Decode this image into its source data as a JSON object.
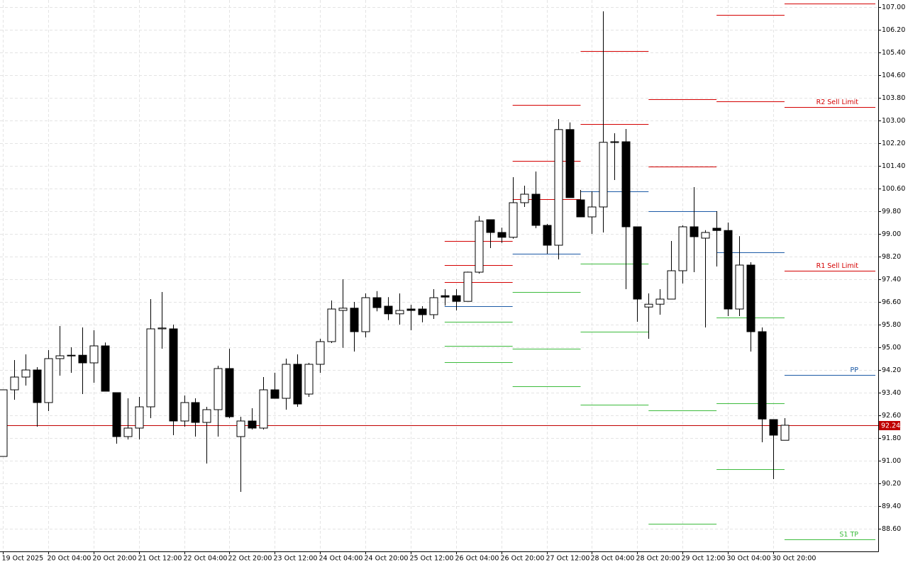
{
  "chart_data": {
    "type": "candlestick",
    "categories": [
      "19 Oct 2025",
      null,
      null,
      null,
      "20 Oct 04:00",
      null,
      null,
      null,
      "20 Oct 20:00",
      null,
      null,
      null,
      "21 Oct 12:00",
      null,
      null,
      null,
      "22 Oct 04:00",
      null,
      null,
      null,
      "22 Oct 20:00",
      null,
      null,
      null,
      "23 Oct 12:00",
      null,
      null,
      null,
      "24 Oct 04:00",
      null,
      null,
      null,
      "24 Oct 20:00",
      null,
      null,
      null,
      "25 Oct 12:00",
      null,
      null,
      null,
      "26 Oct 04:00",
      null,
      null,
      null,
      "26 Oct 20:00",
      null,
      null,
      null,
      "27 Oct 12:00",
      null,
      null,
      null,
      "28 Oct 04:00",
      null,
      null,
      null,
      "28 Oct 20:00",
      null,
      null,
      null,
      "29 Oct 12:00",
      null,
      null,
      null,
      "30 Oct 04:00",
      null,
      null,
      null,
      "30 Oct 20:00",
      null
    ],
    "open": [
      91.15,
      93.5,
      93.95,
      94.2,
      93.05,
      94.6,
      94.7,
      94.72,
      94.45,
      95.05,
      93.4,
      91.85,
      92.15,
      92.9,
      95.65,
      95.65,
      92.4,
      93.05,
      92.35,
      92.8,
      94.25,
      91.85,
      92.4,
      92.15,
      93.5,
      93.2,
      94.4,
      93.35,
      94.4,
      95.2,
      96.3,
      96.38,
      95.55,
      96.75,
      96.45,
      96.18,
      96.35,
      96.35,
      96.15,
      96.82,
      96.82,
      96.62,
      97.65,
      99.5,
      99.05,
      98.88,
      100.1,
      100.4,
      99.3,
      98.6,
      102.68,
      100.2,
      99.6,
      99.95,
      102.23,
      102.25,
      99.25,
      96.42,
      96.52,
      96.7,
      97.7,
      99.25,
      98.85,
      99.2,
      99.12,
      96.35,
      97.9,
      95.55,
      92.45,
      91.72
    ],
    "high": [
      93.5,
      94.55,
      94.75,
      94.3,
      94.9,
      95.75,
      95.0,
      95.7,
      95.6,
      95.17,
      93.4,
      93.2,
      93.25,
      96.7,
      96.95,
      95.8,
      93.3,
      93.2,
      92.9,
      94.35,
      94.95,
      92.55,
      92.85,
      93.95,
      94.1,
      94.6,
      94.75,
      94.45,
      95.3,
      96.65,
      97.4,
      96.6,
      96.9,
      96.98,
      96.77,
      96.9,
      96.5,
      96.45,
      97.05,
      97.05,
      97.05,
      97.67,
      99.63,
      99.5,
      99.22,
      101.0,
      100.7,
      101.2,
      99.35,
      103.05,
      102.93,
      100.55,
      100.5,
      106.85,
      102.55,
      102.7,
      99.25,
      96.9,
      97.05,
      98.75,
      99.3,
      100.65,
      99.13,
      99.8,
      99.4,
      98.92,
      98.0,
      95.7,
      92.45,
      92.5
    ],
    "low": [
      91.15,
      93.15,
      93.65,
      92.2,
      92.75,
      94.0,
      94.1,
      93.35,
      93.75,
      93.45,
      91.6,
      91.75,
      91.75,
      92.5,
      94.95,
      91.9,
      92.2,
      91.85,
      90.9,
      91.85,
      92.5,
      89.9,
      92.1,
      92.1,
      93.2,
      92.8,
      92.9,
      93.25,
      94.1,
      95.15,
      94.98,
      94.85,
      95.35,
      96.27,
      95.96,
      95.8,
      95.6,
      95.88,
      96.0,
      96.47,
      96.3,
      96.62,
      97.6,
      98.5,
      98.68,
      98.83,
      99.95,
      99.2,
      98.3,
      98.1,
      100.28,
      99.6,
      99.0,
      99.05,
      100.9,
      97.05,
      95.9,
      95.3,
      96.15,
      96.7,
      97.25,
      97.65,
      95.7,
      97.85,
      96.1,
      96.1,
      94.85,
      91.65,
      90.35,
      91.72
    ],
    "close": [
      93.5,
      93.95,
      94.2,
      93.05,
      94.6,
      94.7,
      94.72,
      94.45,
      95.05,
      93.45,
      91.85,
      92.15,
      92.9,
      95.65,
      95.68,
      92.4,
      93.05,
      92.35,
      92.8,
      94.25,
      92.55,
      92.4,
      92.15,
      93.5,
      93.2,
      94.4,
      93.0,
      94.4,
      95.2,
      96.35,
      96.38,
      95.55,
      96.75,
      96.4,
      96.18,
      96.3,
      96.3,
      96.15,
      96.75,
      96.77,
      96.62,
      97.65,
      99.45,
      99.05,
      98.88,
      100.1,
      100.4,
      99.3,
      98.6,
      102.68,
      100.28,
      99.6,
      99.95,
      102.23,
      102.25,
      99.25,
      96.7,
      96.52,
      96.7,
      97.7,
      99.25,
      98.9,
      99.05,
      99.12,
      96.35,
      97.9,
      95.55,
      92.47,
      91.9,
      92.25
    ],
    "bull_color": "#ffffff",
    "bear_color": "#000000",
    "wick_color": "#000000",
    "ylim": [
      87.8,
      107.25
    ],
    "yticks": [
      {
        "value": 107,
        "label": "107.00"
      },
      {
        "value": 106.2,
        "label": "106.20"
      },
      {
        "value": 105.4,
        "label": "105.40"
      },
      {
        "value": 104.6,
        "label": "104.60"
      },
      {
        "value": 103.8,
        "label": "103.80"
      },
      {
        "value": 103,
        "label": "103.00"
      },
      {
        "value": 102.2,
        "label": "102.20"
      },
      {
        "value": 101.4,
        "label": "101.40"
      },
      {
        "value": 100.6,
        "label": "100.60"
      },
      {
        "value": 99.8,
        "label": "99.80"
      },
      {
        "value": 99,
        "label": "99.00"
      },
      {
        "value": 98.2,
        "label": "98.20"
      },
      {
        "value": 97.4,
        "label": "97.40"
      },
      {
        "value": 96.6,
        "label": "96.60"
      },
      {
        "value": 95.8,
        "label": "95.80"
      },
      {
        "value": 95,
        "label": "95.00"
      },
      {
        "value": 94.2,
        "label": "94.20"
      },
      {
        "value": 93.4,
        "label": "93.40"
      },
      {
        "value": 92.6,
        "label": "92.60"
      },
      {
        "value": 91.8,
        "label": "91.80"
      },
      {
        "value": 91,
        "label": "91.00"
      },
      {
        "value": 90.2,
        "label": "90.20"
      },
      {
        "value": 89.4,
        "label": "89.40"
      },
      {
        "value": 88.6,
        "label": "88.60"
      }
    ],
    "grid": true,
    "level_colors": {
      "resistance": "#d40000",
      "pivot": "#1c5aa6",
      "support": "#3dbb3d"
    },
    "levels": [
      {
        "resistance": [
          98.74,
          97.89,
          97.31
        ],
        "pivot": 96.46,
        "support": [
          95.89,
          95.04,
          94.47
        ]
      },
      {
        "resistance": [
          103.55,
          101.58,
          100.23
        ],
        "pivot": 98.29,
        "support": [
          96.94,
          94.96,
          93.62
        ]
      },
      {
        "resistance": [
          105.45,
          102.88
        ],
        "pivot": 100.51,
        "support": [
          97.94,
          95.54,
          92.97
        ]
      },
      {
        "resistance": [
          103.75,
          101.38
        ],
        "pivot": 99.81,
        "support": [
          92.77,
          88.77
        ]
      },
      {
        "resistance": [
          106.73,
          103.68
        ],
        "pivot": 98.34,
        "support": [
          96.04,
          93.02,
          90.7
        ]
      }
    ],
    "projected_levels": [
      {
        "kind": "resistance",
        "value": 107.12
      },
      {
        "kind": "resistance",
        "value": 103.48,
        "label": "R2 Sell Limit"
      },
      {
        "kind": "resistance",
        "value": 97.69,
        "label": "R1 Sell Limit"
      },
      {
        "kind": "pivot",
        "value": 94.02,
        "label": "PP"
      },
      {
        "kind": "support",
        "value": 88.22,
        "label": "S1 TP"
      }
    ],
    "last_price": 92.24,
    "last_price_color": "#c00000"
  }
}
